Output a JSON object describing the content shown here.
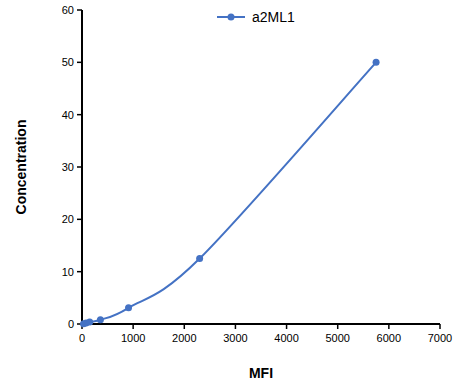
{
  "chart_data": {
    "type": "line",
    "x_label": "MFI",
    "y_label": "Concentration",
    "x": [
      30,
      80,
      150,
      360,
      910,
      2300,
      5750
    ],
    "series": [
      {
        "name": "a2ML1",
        "color": "#4472c4",
        "marker": "circle",
        "line_style": "smooth",
        "values": [
          0.05,
          0.2,
          0.4,
          0.8,
          3.1,
          12.5,
          50
        ]
      }
    ],
    "xlim": [
      0,
      7000
    ],
    "xticks": [
      0,
      1000,
      2000,
      3000,
      4000,
      5000,
      6000,
      7000
    ],
    "ylim": [
      0,
      60
    ],
    "yticks": [
      0,
      10,
      20,
      30,
      40,
      50,
      60
    ],
    "grid": false,
    "legend": "top"
  }
}
